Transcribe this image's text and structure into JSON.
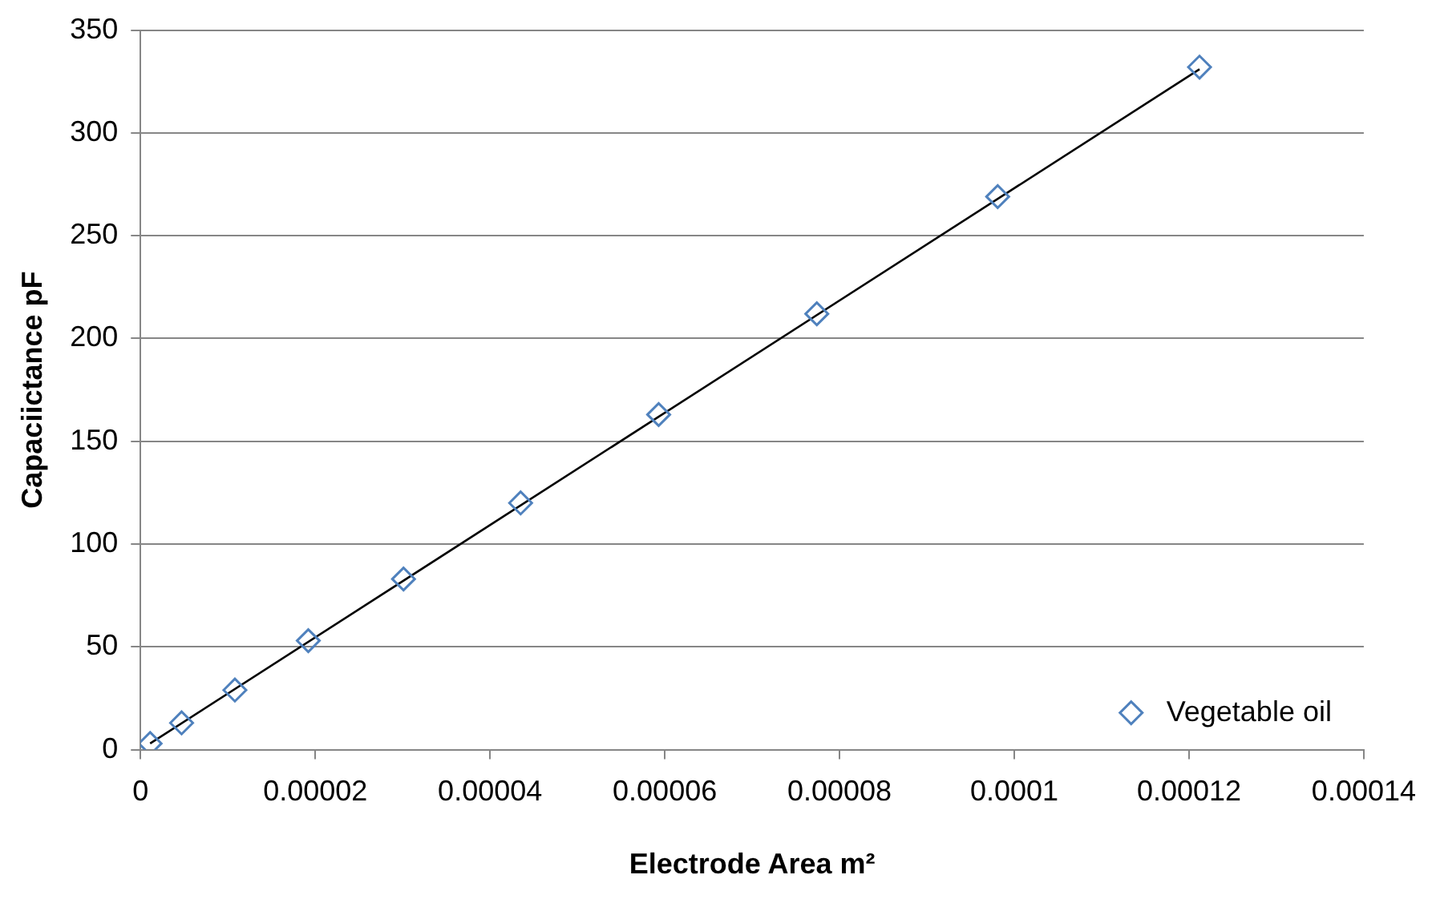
{
  "chart_data": {
    "type": "scatter",
    "xlabel": "Electrode Area m²",
    "ylabel": "Capaciictance pF",
    "series": [
      {
        "name": "Vegetable oil",
        "color": "#4f81bd",
        "marker": "diamond",
        "x": [
          1.1e-06,
          4.7e-06,
          1.08e-05,
          1.92e-05,
          3.01e-05,
          4.35e-05,
          5.93e-05,
          7.74e-05,
          9.81e-05,
          0.0001212
        ],
        "values": [
          3,
          13,
          29,
          53,
          83,
          120,
          163,
          212,
          269,
          332
        ]
      },
      {
        "type": "line",
        "color": "#000000",
        "marker": "none",
        "x": [
          1.1e-06,
          0.0001212
        ],
        "values": [
          3,
          331
        ]
      }
    ],
    "xlim": [
      0,
      0.00014
    ],
    "xticks": [
      0,
      {
        "value": 2e-05,
        "label": "0.00002"
      },
      {
        "value": 4e-05,
        "label": "0.00004"
      },
      {
        "value": 6e-05,
        "label": "0.00006"
      },
      {
        "value": 8e-05,
        "label": "0.00008"
      },
      0.0001,
      0.00012,
      0.00014
    ],
    "ylim": [
      0,
      350
    ],
    "yticks": [
      0,
      50,
      100,
      150,
      200,
      250,
      300,
      350
    ],
    "grid": "y",
    "legend": "bottom right"
  }
}
